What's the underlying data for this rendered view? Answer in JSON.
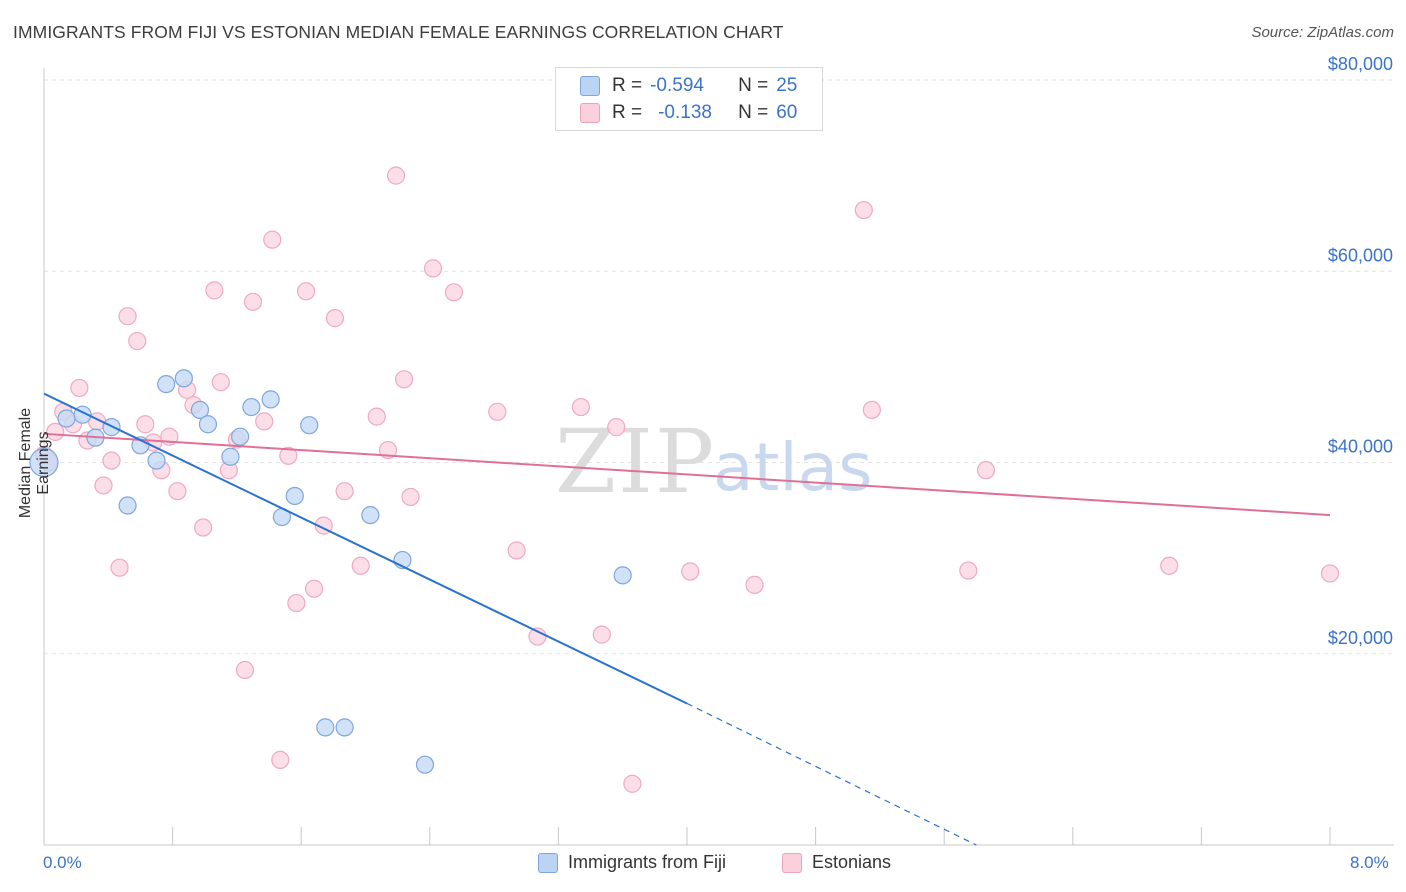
{
  "title": "IMMIGRANTS FROM FIJI VS ESTONIAN MEDIAN FEMALE EARNINGS CORRELATION CHART",
  "source": "Source: ZipAtlas.com",
  "watermark": {
    "zip": "ZIP",
    "atlas": "atlas"
  },
  "legend": {
    "series1": {
      "r_label": "R =",
      "r_value": "-0.594",
      "n_label": "N =",
      "n_value": "25"
    },
    "series2": {
      "r_label": "R =",
      "r_value": "-0.138",
      "n_label": "N =",
      "n_value": "60"
    }
  },
  "bottom_legend": {
    "series1": "Immigrants from Fiji",
    "series2": "Estonians"
  },
  "x_axis": {
    "min_label": "0.0%",
    "max_label": "8.0%"
  },
  "chart_data": {
    "type": "scatter",
    "title": "IMMIGRANTS FROM FIJI VS ESTONIAN MEDIAN FEMALE EARNINGS CORRELATION CHART",
    "xlabel": "",
    "ylabel": "Median Female Earnings",
    "xlim": [
      0,
      8
    ],
    "ylim": [
      0,
      80000
    ],
    "x_unit": "%",
    "y_ticks": [
      20000,
      40000,
      60000,
      80000
    ],
    "y_tick_labels": [
      "$20,000",
      "$40,000",
      "$60,000",
      "$80,000"
    ],
    "grid": true,
    "colors": {
      "series1": "#aac8f0",
      "series1_line": "#2a72d0",
      "series2": "#f6b8cc",
      "series2_line": "#e07096",
      "tick_text": "#3b73c9"
    },
    "series": [
      {
        "name": "Immigrants from Fiji",
        "r": -0.594,
        "n": 25,
        "trend": {
          "x": [
            0.0,
            4.0
          ],
          "y": [
            47200,
            14800
          ],
          "dashed_to": [
            5.8,
            0
          ]
        },
        "points": [
          [
            0.0,
            40000
          ],
          [
            0.14,
            44600
          ],
          [
            0.24,
            45000
          ],
          [
            0.32,
            42600
          ],
          [
            0.42,
            43700
          ],
          [
            0.52,
            35500
          ],
          [
            0.6,
            41800
          ],
          [
            0.7,
            40200
          ],
          [
            0.76,
            48200
          ],
          [
            0.87,
            48800
          ],
          [
            0.97,
            45500
          ],
          [
            1.02,
            44000
          ],
          [
            1.16,
            40600
          ],
          [
            1.22,
            42700
          ],
          [
            1.29,
            45800
          ],
          [
            1.41,
            46600
          ],
          [
            1.48,
            34300
          ],
          [
            1.56,
            36500
          ],
          [
            1.65,
            43900
          ],
          [
            1.75,
            12300
          ],
          [
            1.87,
            12300
          ],
          [
            2.03,
            34500
          ],
          [
            2.23,
            29800
          ],
          [
            2.37,
            8400
          ],
          [
            3.6,
            28200
          ]
        ]
      },
      {
        "name": "Estonians",
        "r": -0.138,
        "n": 60,
        "trend": {
          "x": [
            0.0,
            8.0
          ],
          "y": [
            43000,
            34500
          ]
        },
        "points": [
          [
            0.0,
            40800
          ],
          [
            0.07,
            43200
          ],
          [
            0.12,
            45300
          ],
          [
            0.18,
            44000
          ],
          [
            0.22,
            47800
          ],
          [
            0.27,
            42300
          ],
          [
            0.33,
            44300
          ],
          [
            0.37,
            37600
          ],
          [
            0.42,
            40200
          ],
          [
            0.47,
            29000
          ],
          [
            0.52,
            55300
          ],
          [
            0.58,
            52700
          ],
          [
            0.63,
            44000
          ],
          [
            0.68,
            42100
          ],
          [
            0.73,
            39200
          ],
          [
            0.78,
            42700
          ],
          [
            0.83,
            37000
          ],
          [
            0.89,
            47600
          ],
          [
            0.93,
            46000
          ],
          [
            0.99,
            33200
          ],
          [
            1.06,
            58000
          ],
          [
            1.1,
            48400
          ],
          [
            1.15,
            39200
          ],
          [
            1.2,
            42400
          ],
          [
            1.25,
            18300
          ],
          [
            1.3,
            56800
          ],
          [
            1.37,
            44300
          ],
          [
            1.42,
            63300
          ],
          [
            1.47,
            8900
          ],
          [
            1.52,
            40700
          ],
          [
            1.57,
            25300
          ],
          [
            1.63,
            57900
          ],
          [
            1.68,
            26800
          ],
          [
            1.74,
            33400
          ],
          [
            1.81,
            55100
          ],
          [
            1.87,
            37000
          ],
          [
            1.97,
            29200
          ],
          [
            2.07,
            44800
          ],
          [
            2.14,
            41300
          ],
          [
            2.19,
            70000
          ],
          [
            2.24,
            48700
          ],
          [
            2.28,
            36400
          ],
          [
            2.42,
            60300
          ],
          [
            2.55,
            57800
          ],
          [
            2.82,
            45300
          ],
          [
            2.94,
            30800
          ],
          [
            3.07,
            21800
          ],
          [
            3.34,
            45800
          ],
          [
            3.47,
            22000
          ],
          [
            3.56,
            43700
          ],
          [
            3.66,
            6400
          ],
          [
            4.02,
            28600
          ],
          [
            4.42,
            27200
          ],
          [
            5.1,
            66400
          ],
          [
            5.15,
            45500
          ],
          [
            5.75,
            28700
          ],
          [
            5.86,
            39200
          ],
          [
            7.0,
            29200
          ],
          [
            8.0,
            28400
          ],
          [
            0.03,
            40000
          ]
        ]
      }
    ]
  }
}
